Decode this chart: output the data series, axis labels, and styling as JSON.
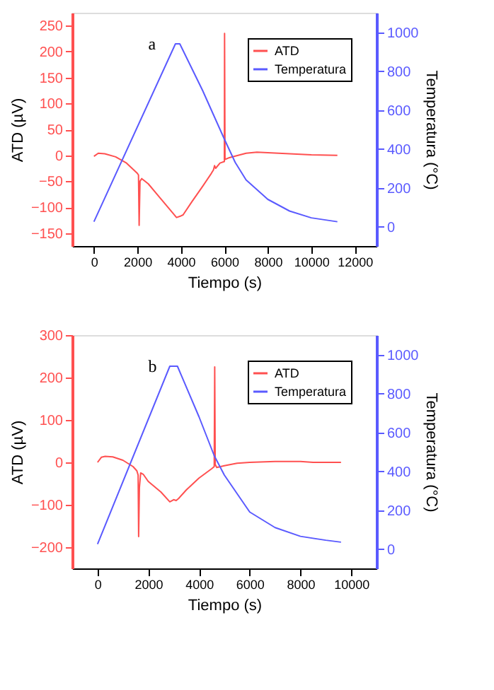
{
  "chart_data": [
    {
      "type": "line",
      "xlabel": "Tiempo (s)",
      "ylabel": "ATD (µV)",
      "y2label": "Temperatura (°C)",
      "annotations": [
        "a"
      ],
      "legend": "top right",
      "grid": false,
      "marker": "none",
      "line_style": "solid",
      "xlim": [
        -1000,
        13000
      ],
      "xticks": [
        0,
        2000,
        4000,
        6000,
        8000,
        10000,
        12000
      ],
      "ylim": [
        -175,
        275
      ],
      "yticks": [
        -150,
        -100,
        -50,
        0,
        50,
        100,
        150,
        200,
        250
      ],
      "y2lim": [
        -100,
        1100
      ],
      "y2ticks": [
        0,
        200,
        400,
        600,
        800,
        1000
      ],
      "series": [
        {
          "name": "ATD",
          "color": "#ff5050",
          "axis": "y",
          "x": [
            0,
            200,
            500,
            1000,
            1500,
            2000,
            2050,
            2080,
            2120,
            2200,
            2500,
            3000,
            3500,
            3800,
            4000,
            4100,
            4500,
            5000,
            5400,
            5500,
            5550,
            5600,
            5800,
            6000,
            6010,
            6030,
            6200,
            7000,
            7500,
            8000,
            9000,
            10000,
            11200
          ],
          "values": [
            -2,
            4,
            3,
            -3,
            -15,
            -35,
            -38,
            -135,
            -50,
            -45,
            -55,
            -80,
            -105,
            -120,
            -117,
            -115,
            -90,
            -60,
            -35,
            -28,
            -20,
            -25,
            -15,
            -12,
            235,
            -8,
            -5,
            4,
            6,
            5,
            3,
            1,
            0
          ]
        },
        {
          "name": "Temperatura",
          "color": "#5a5aff",
          "axis": "y2",
          "x": [
            0,
            3750,
            3950,
            5000,
            6000,
            6500,
            7000,
            8000,
            9000,
            10000,
            11200
          ],
          "values": [
            25,
            940,
            940,
            700,
            450,
            330,
            240,
            140,
            80,
            45,
            25
          ]
        }
      ]
    },
    {
      "type": "line",
      "xlabel": "Tiempo (s)",
      "ylabel": "ATD (µV)",
      "y2label": "Temperatura (°C)",
      "annotations": [
        "b"
      ],
      "legend": "top right",
      "grid": false,
      "marker": "none",
      "line_style": "solid",
      "xlim": [
        -1000,
        11000
      ],
      "xticks": [
        0,
        2000,
        4000,
        6000,
        8000,
        10000
      ],
      "ylim": [
        -250,
        300
      ],
      "yticks": [
        -200,
        -100,
        0,
        100,
        200,
        300
      ],
      "y2lim": [
        -100,
        1100
      ],
      "y2ticks": [
        0,
        200,
        400,
        600,
        800,
        1000
      ],
      "series": [
        {
          "name": "ATD",
          "color": "#ff5050",
          "axis": "y",
          "x": [
            0,
            150,
            300,
            600,
            1000,
            1400,
            1550,
            1600,
            1620,
            1650,
            1700,
            1800,
            2000,
            2500,
            2850,
            3000,
            3100,
            3200,
            3500,
            4000,
            4500,
            4600,
            4620,
            4640,
            4700,
            5000,
            5500,
            6000,
            7000,
            8000,
            8500,
            9600
          ],
          "values": [
            0,
            12,
            14,
            13,
            5,
            -10,
            -20,
            -30,
            -175,
            -60,
            -25,
            -28,
            -45,
            -70,
            -93,
            -88,
            -90,
            -85,
            -65,
            -37,
            -15,
            -10,
            225,
            -5,
            -12,
            -8,
            -2,
            0,
            2,
            2,
            0,
            0
          ]
        },
        {
          "name": "Temperatura",
          "color": "#5a5aff",
          "axis": "y2",
          "x": [
            0,
            2850,
            3150,
            4000,
            4600,
            5000,
            6000,
            7000,
            8000,
            9000,
            9600
          ],
          "values": [
            25,
            940,
            940,
            680,
            480,
            380,
            190,
            110,
            65,
            45,
            35
          ]
        }
      ]
    }
  ]
}
